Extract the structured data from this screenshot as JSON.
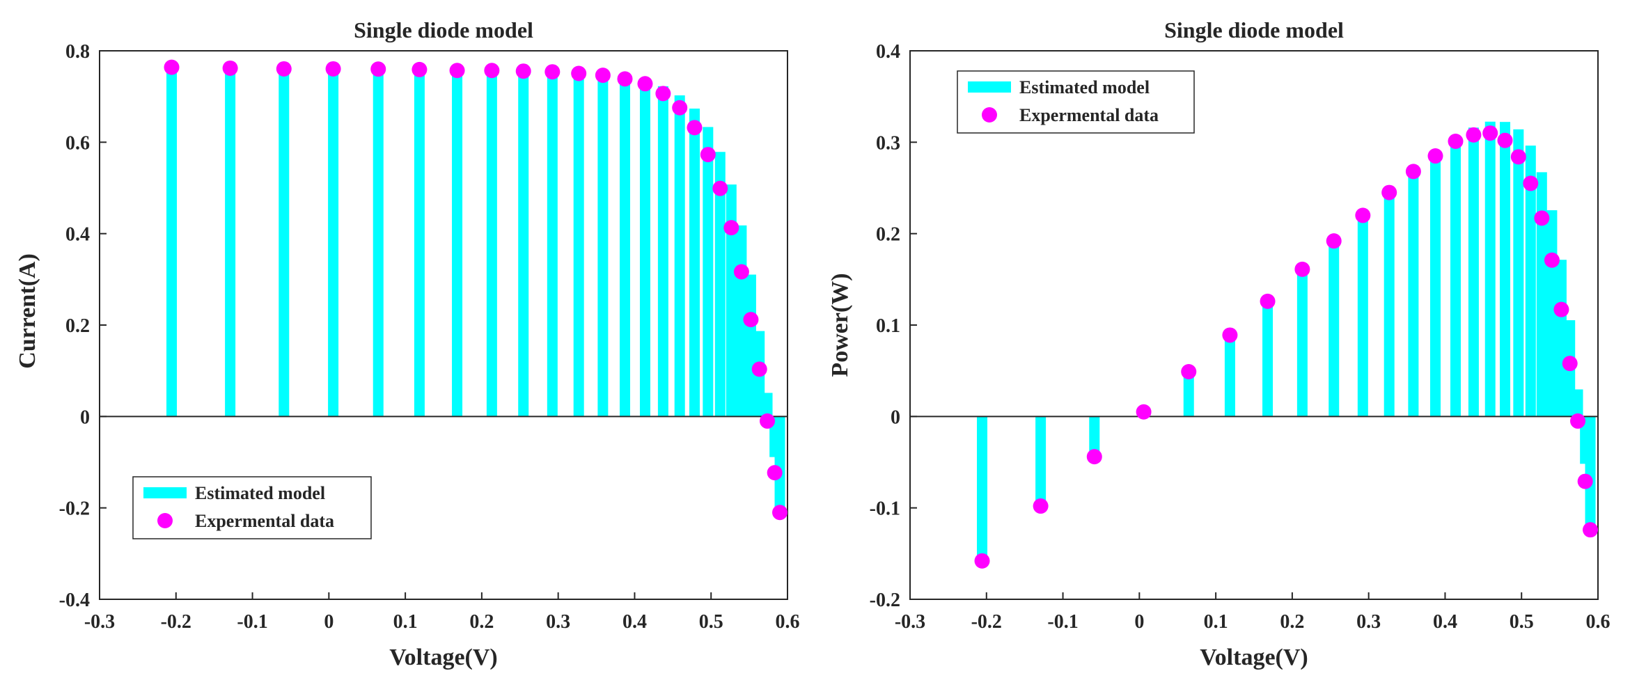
{
  "chart_data": [
    {
      "type": "bar",
      "title": "Single diode model",
      "xlabel": "Voltage(V)",
      "ylabel": "Current(A)",
      "xlim": [
        -0.3,
        0.6
      ],
      "ylim": [
        -0.4,
        0.8
      ],
      "xticks": [
        "-0.3",
        "-0.2",
        "-0.1",
        "0",
        "0.1",
        "0.2",
        "0.3",
        "0.4",
        "0.5",
        "0.6"
      ],
      "yticks": [
        "-0.4",
        "-0.2",
        "0",
        "0.2",
        "0.4",
        "0.6",
        "0.8"
      ],
      "legend_position": "lower-left",
      "grid": false,
      "x": [
        -0.2057,
        -0.1291,
        -0.0588,
        0.0057,
        0.0646,
        0.1185,
        0.1678,
        0.2132,
        0.2545,
        0.2924,
        0.3269,
        0.3585,
        0.3873,
        0.4137,
        0.4373,
        0.459,
        0.4784,
        0.496,
        0.5119,
        0.5265,
        0.5398,
        0.5521,
        0.5633,
        0.5736,
        0.5833,
        0.59
      ],
      "series": [
        {
          "name": "Estimated model",
          "kind": "stem-bar",
          "color": "#00ffff",
          "values": [
            0.7624,
            0.7624,
            0.7623,
            0.7622,
            0.762,
            0.7617,
            0.7613,
            0.7606,
            0.7595,
            0.7578,
            0.7552,
            0.7512,
            0.7452,
            0.7362,
            0.7226,
            0.7025,
            0.6736,
            0.6333,
            0.5788,
            0.5075,
            0.418,
            0.3104,
            0.1869,
            0.0516,
            -0.0888,
            -0.1993
          ]
        },
        {
          "name": "Expermental data",
          "kind": "marker",
          "color": "#ff00ff",
          "values": [
            0.764,
            0.762,
            0.7605,
            0.7605,
            0.76,
            0.759,
            0.757,
            0.757,
            0.7555,
            0.754,
            0.7505,
            0.7465,
            0.7385,
            0.728,
            0.7065,
            0.6755,
            0.632,
            0.573,
            0.499,
            0.413,
            0.3165,
            0.212,
            0.1035,
            -0.01,
            -0.123,
            -0.21
          ]
        }
      ]
    },
    {
      "type": "bar",
      "title": "Single diode model",
      "xlabel": "Voltage(V)",
      "ylabel": "Power(W)",
      "xlim": [
        -0.3,
        0.6
      ],
      "ylim": [
        -0.2,
        0.4
      ],
      "xticks": [
        "-0.3",
        "-0.2",
        "-0.1",
        "0",
        "0.1",
        "0.2",
        "0.3",
        "0.4",
        "0.5",
        "0.6"
      ],
      "yticks": [
        "-0.2",
        "-0.1",
        "0",
        "0.1",
        "0.2",
        "0.3",
        "0.4"
      ],
      "legend_position": "upper-left",
      "grid": false,
      "x": [
        -0.2057,
        -0.1291,
        -0.0588,
        0.0057,
        0.0646,
        0.1185,
        0.1678,
        0.2132,
        0.2545,
        0.2924,
        0.3269,
        0.3585,
        0.3873,
        0.4137,
        0.4373,
        0.459,
        0.4784,
        0.496,
        0.5119,
        0.5265,
        0.5398,
        0.5521,
        0.5633,
        0.5736,
        0.5833,
        0.59
      ],
      "series": [
        {
          "name": "Estimated model",
          "kind": "stem-bar",
          "color": "#00ffff",
          "values": [
            -0.1568,
            -0.0984,
            -0.0448,
            0.0043,
            0.0492,
            0.0903,
            0.1277,
            0.1622,
            0.1933,
            0.2216,
            0.2469,
            0.2693,
            0.2886,
            0.3046,
            0.316,
            0.3225,
            0.3222,
            0.3141,
            0.2963,
            0.2672,
            0.2256,
            0.1714,
            0.1053,
            0.0296,
            -0.0518,
            -0.1176
          ]
        },
        {
          "name": "Expermental data",
          "kind": "marker",
          "color": "#ff00ff",
          "values": [
            -0.158,
            -0.098,
            -0.044,
            0.005,
            0.049,
            0.089,
            0.126,
            0.161,
            0.192,
            0.22,
            0.245,
            0.268,
            0.285,
            0.301,
            0.308,
            0.31,
            0.302,
            0.284,
            0.255,
            0.217,
            0.171,
            0.117,
            0.058,
            -0.005,
            -0.071,
            -0.124
          ]
        }
      ]
    }
  ]
}
